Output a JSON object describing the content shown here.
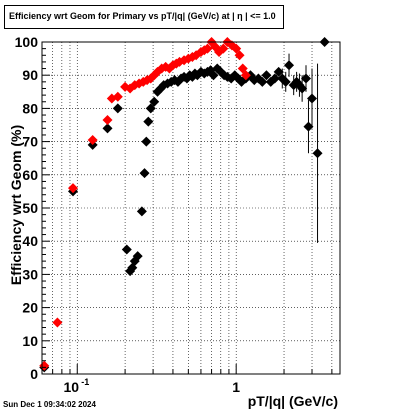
{
  "title": "Efficiency wrt Geom for Primary vs pT/|q| (GeV/c) at |  η  | <= 1.0",
  "timestamp": "Sun Dec  1 09:34:02 2024",
  "colors": {
    "black_series": "#000000",
    "red_series": "#ff0000",
    "grid": "#000000"
  },
  "chart_data": {
    "type": "scatter",
    "title": "Efficiency wrt Geom for Primary vs pT/|q| (GeV/c) at |  η  | <= 1.0",
    "xlabel": "pT/|q| (GeV/c)",
    "ylabel": "Efficiency wrt Geom (%)",
    "xscale": "log",
    "xlim": [
      0.06,
      4.5
    ],
    "ylim": [
      0,
      100
    ],
    "yticks": [
      0,
      10,
      20,
      30,
      40,
      50,
      60,
      70,
      80,
      90,
      100
    ],
    "xtick_labels": [
      {
        "value": 0.1,
        "label": "10^-1"
      },
      {
        "value": 1,
        "label": "1"
      }
    ],
    "grid": true,
    "series": [
      {
        "color": "#000000",
        "points": [
          [
            0.062,
            2
          ],
          [
            0.094,
            55
          ],
          [
            0.125,
            69
          ],
          [
            0.155,
            74
          ],
          [
            0.18,
            80
          ],
          [
            0.205,
            37.5
          ],
          [
            0.215,
            31
          ],
          [
            0.222,
            32
          ],
          [
            0.23,
            34
          ],
          [
            0.24,
            35.5
          ],
          [
            0.255,
            49
          ],
          [
            0.265,
            60.5
          ],
          [
            0.272,
            70
          ],
          [
            0.28,
            76
          ],
          [
            0.29,
            80
          ],
          [
            0.305,
            82
          ],
          [
            0.32,
            85
          ],
          [
            0.335,
            86
          ],
          [
            0.35,
            87
          ],
          [
            0.37,
            87.5
          ],
          [
            0.39,
            88
          ],
          [
            0.41,
            88.5
          ],
          [
            0.43,
            88
          ],
          [
            0.45,
            89
          ],
          [
            0.47,
            89.5
          ],
          [
            0.49,
            89
          ],
          [
            0.51,
            90
          ],
          [
            0.53,
            89.5
          ],
          [
            0.55,
            90.5
          ],
          [
            0.57,
            90
          ],
          [
            0.6,
            91
          ],
          [
            0.63,
            90.5
          ],
          [
            0.66,
            91
          ],
          [
            0.69,
            91.5
          ],
          [
            0.72,
            90
          ],
          [
            0.76,
            92
          ],
          [
            0.8,
            91
          ],
          [
            0.84,
            90
          ],
          [
            0.88,
            89.5
          ],
          [
            0.93,
            89
          ],
          [
            0.98,
            90
          ],
          [
            1.03,
            89
          ],
          [
            1.08,
            88
          ],
          [
            1.15,
            89
          ],
          [
            1.23,
            90
          ],
          [
            1.3,
            88.5
          ],
          [
            1.38,
            89
          ],
          [
            1.46,
            88
          ],
          [
            1.55,
            90
          ],
          [
            1.65,
            88
          ],
          [
            1.75,
            89
          ],
          [
            1.85,
            91
          ],
          [
            1.95,
            89
          ],
          [
            2.05,
            88
          ],
          [
            2.15,
            93
          ],
          [
            2.3,
            87
          ],
          [
            2.4,
            88
          ],
          [
            2.5,
            87
          ],
          [
            2.6,
            86
          ],
          [
            2.75,
            89
          ],
          [
            2.85,
            74.5
          ],
          [
            3.0,
            83
          ],
          [
            3.25,
            66.5
          ],
          [
            3.6,
            100
          ]
        ],
        "yerr": [
          [
            3.6,
            0
          ],
          [
            3.25,
            27
          ],
          [
            3.0,
            9
          ],
          [
            2.85,
            8
          ],
          [
            2.75,
            4
          ],
          [
            2.6,
            4
          ],
          [
            2.5,
            3.5
          ],
          [
            2.4,
            3
          ],
          [
            2.3,
            3
          ],
          [
            2.15,
            3.5
          ],
          [
            2.05,
            3
          ],
          [
            1.95,
            3
          ]
        ]
      },
      {
        "color": "#ff0000",
        "points": [
          [
            0.062,
            2.5
          ],
          [
            0.075,
            15.5
          ],
          [
            0.094,
            56
          ],
          [
            0.125,
            70.5
          ],
          [
            0.155,
            76.5
          ],
          [
            0.165,
            83
          ],
          [
            0.18,
            83.5
          ],
          [
            0.2,
            86.5
          ],
          [
            0.215,
            86
          ],
          [
            0.23,
            87
          ],
          [
            0.245,
            87.5
          ],
          [
            0.26,
            88
          ],
          [
            0.275,
            88.5
          ],
          [
            0.29,
            89
          ],
          [
            0.305,
            90
          ],
          [
            0.32,
            91
          ],
          [
            0.34,
            92
          ],
          [
            0.36,
            92.5
          ],
          [
            0.38,
            92
          ],
          [
            0.4,
            93
          ],
          [
            0.42,
            93.5
          ],
          [
            0.44,
            94
          ],
          [
            0.47,
            94.5
          ],
          [
            0.5,
            95
          ],
          [
            0.53,
            95.5
          ],
          [
            0.56,
            96
          ],
          [
            0.6,
            97
          ],
          [
            0.63,
            97.5
          ],
          [
            0.66,
            98
          ],
          [
            0.7,
            100
          ],
          [
            0.74,
            98.5
          ],
          [
            0.78,
            97
          ],
          [
            0.83,
            98
          ],
          [
            0.88,
            100
          ],
          [
            0.94,
            99
          ],
          [
            1.0,
            98
          ],
          [
            1.05,
            96
          ],
          [
            1.1,
            92
          ],
          [
            1.15,
            90
          ]
        ]
      }
    ]
  }
}
